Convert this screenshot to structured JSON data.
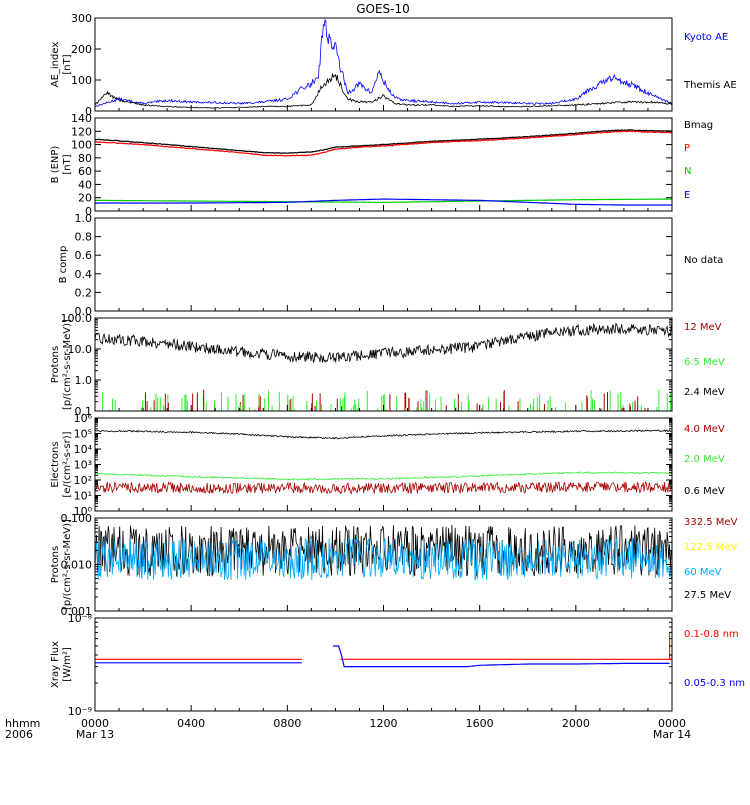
{
  "title": "GOES-10",
  "time_axis": {
    "unit_label": "hhmm",
    "year_label": "2006",
    "ticks": [
      {
        "label": "0000",
        "date": "Mar 13"
      },
      {
        "label": "0400",
        "date": ""
      },
      {
        "label": "0800",
        "date": ""
      },
      {
        "label": "1200",
        "date": ""
      },
      {
        "label": "1600",
        "date": ""
      },
      {
        "label": "2000",
        "date": ""
      },
      {
        "label": "0000",
        "date": "Mar 14"
      }
    ]
  },
  "colors": {
    "black": "#000000",
    "blue": "#0000ff",
    "red": "#ff0000",
    "green": "#00cc00",
    "darkred": "#aa0000",
    "lime": "#33ee33",
    "yellow": "#ffff00",
    "cyan": "#00aaff"
  },
  "chart_data": [
    {
      "type": "line",
      "id": "ae",
      "ylabel": [
        "AE_index",
        "[nT]"
      ],
      "ylim": [
        0,
        310
      ],
      "yticks": [
        "0",
        "100",
        "200",
        "300"
      ],
      "legend": [
        {
          "name": "Kyoto AE",
          "color": "#0000ff"
        },
        {
          "name": "Themis AE",
          "color": "#000000"
        }
      ],
      "series": [
        {
          "name": "Kyoto AE",
          "color": "#0000ff",
          "x": [
            0,
            1,
            2,
            3,
            4,
            5,
            6,
            7,
            8,
            8.5,
            9,
            9.3,
            9.5,
            9.8,
            10,
            10.2,
            10.5,
            11,
            11.5,
            11.8,
            12,
            12.3,
            12.6,
            13,
            14,
            15,
            16,
            17,
            18,
            19,
            20,
            20.5,
            21,
            21.5,
            22,
            22.5,
            23,
            23.5,
            24
          ],
          "y": [
            15,
            40,
            25,
            35,
            30,
            28,
            25,
            30,
            40,
            70,
            90,
            120,
            300,
            230,
            210,
            150,
            60,
            90,
            60,
            130,
            100,
            60,
            40,
            35,
            30,
            25,
            30,
            28,
            25,
            25,
            40,
            70,
            90,
            110,
            100,
            80,
            60,
            40,
            25
          ]
        },
        {
          "name": "Themis AE",
          "color": "#000000",
          "x": [
            0,
            0.5,
            1,
            2,
            3,
            4,
            5,
            6,
            7,
            8,
            9,
            9.5,
            10,
            10.5,
            11,
            11.5,
            12,
            12.5,
            13,
            14,
            15,
            16,
            17,
            18,
            19,
            20,
            21,
            22,
            23,
            24
          ],
          "y": [
            20,
            60,
            35,
            20,
            15,
            12,
            10,
            12,
            15,
            15,
            20,
            90,
            120,
            40,
            30,
            30,
            50,
            25,
            20,
            20,
            15,
            18,
            15,
            15,
            18,
            20,
            25,
            30,
            30,
            25
          ]
        }
      ]
    },
    {
      "type": "line",
      "id": "b-enp",
      "ylabel": [
        "B (ENP)",
        "[nT]"
      ],
      "ylim": [
        0,
        140
      ],
      "yticks": [
        "0",
        "20",
        "40",
        "60",
        "80",
        "100",
        "120",
        "140"
      ],
      "legend": [
        {
          "name": "Bmag",
          "color": "#000000"
        },
        {
          "name": "P",
          "color": "#ff0000"
        },
        {
          "name": "N",
          "color": "#00cc00"
        },
        {
          "name": "E",
          "color": "#0000ff"
        }
      ],
      "series": [
        {
          "name": "Bmag",
          "color": "#000000",
          "x": [
            0,
            2,
            4,
            6,
            7,
            8,
            9,
            9.5,
            10,
            11,
            12,
            14,
            16,
            18,
            20,
            21,
            22,
            23,
            24
          ],
          "y": [
            108,
            103,
            97,
            91,
            88,
            87,
            89,
            92,
            96,
            98,
            100,
            105,
            108,
            112,
            117,
            120,
            122,
            121,
            120
          ]
        },
        {
          "name": "P",
          "color": "#ff0000",
          "x": [
            0,
            2,
            4,
            6,
            7,
            8,
            9,
            9.5,
            10,
            11,
            12,
            14,
            16,
            18,
            20,
            21,
            22,
            23,
            24
          ],
          "y": [
            104,
            100,
            94,
            88,
            84,
            83,
            84,
            88,
            93,
            96,
            98,
            103,
            106,
            110,
            115,
            118,
            120,
            119,
            118
          ]
        },
        {
          "name": "N",
          "color": "#00cc00",
          "x": [
            0,
            4,
            8,
            12,
            16,
            20,
            24
          ],
          "y": [
            16,
            15,
            14,
            13,
            15,
            17,
            18
          ]
        },
        {
          "name": "E",
          "color": "#0000ff",
          "x": [
            0,
            4,
            8,
            10,
            12,
            14,
            16,
            18,
            20,
            22,
            24
          ],
          "y": [
            12,
            12,
            13,
            16,
            18,
            17,
            16,
            13,
            10,
            9,
            9
          ]
        }
      ]
    },
    {
      "type": "line",
      "id": "b-comp",
      "ylabel": [
        "B comp"
      ],
      "ylim": [
        0,
        1
      ],
      "yticks": [
        "0.0",
        "0.2",
        "0.4",
        "0.6",
        "0.8",
        "1.0"
      ],
      "legend": [
        {
          "name": "No data",
          "color": "#000000"
        }
      ],
      "series": []
    },
    {
      "type": "line",
      "id": "protons-low",
      "ylabel": [
        "Protons",
        "[p/(cm²-s-sr-MeV)]"
      ],
      "yscale": "log",
      "ylim": [
        0.1,
        100
      ],
      "yticks": [
        "0.1",
        "1.0",
        "10.0",
        "100.0"
      ],
      "legend": [
        {
          "name": "12 MeV",
          "color": "#aa0000"
        },
        {
          "name": "6.5 MeV",
          "color": "#33ee33"
        },
        {
          "name": "2.4 MeV",
          "color": "#000000"
        }
      ],
      "series": [
        {
          "name": "2.4 MeV",
          "color": "#000000",
          "x": [
            0,
            2,
            4,
            6,
            8,
            10,
            12,
            14,
            16,
            18,
            20,
            22,
            24
          ],
          "y": [
            22,
            18,
            12,
            8,
            6,
            5,
            7,
            9,
            12,
            25,
            40,
            45,
            38
          ]
        }
      ]
    },
    {
      "type": "line",
      "id": "electrons",
      "ylabel": [
        "Electrons",
        "[e/(cm²-s-sr)]"
      ],
      "yscale": "log",
      "ylim": [
        1,
        1000000
      ],
      "yticks": [
        "10⁰",
        "10¹",
        "10²",
        "10³",
        "10⁴",
        "10⁵",
        "10⁶"
      ],
      "legend": [
        {
          "name": "4.0 MeV",
          "color": "#aa0000"
        },
        {
          "name": "2.0 MeV",
          "color": "#33ee33"
        },
        {
          "name": "0.6 MeV",
          "color": "#000000"
        }
      ],
      "series": [
        {
          "name": "0.6 MeV",
          "color": "#000000",
          "x": [
            0,
            4,
            8,
            10,
            12,
            16,
            20,
            24
          ],
          "y": [
            150000,
            120000,
            60000,
            50000,
            70000,
            110000,
            140000,
            150000
          ]
        },
        {
          "name": "2.0 MeV",
          "color": "#33ee33",
          "x": [
            0,
            4,
            8,
            12,
            16,
            20,
            24
          ],
          "y": [
            250,
            160,
            110,
            120,
            180,
            300,
            280
          ]
        },
        {
          "name": "4.0 MeV",
          "color": "#aa0000",
          "x": [
            0,
            4,
            8,
            12,
            16,
            20,
            24
          ],
          "y": [
            35,
            30,
            30,
            30,
            30,
            35,
            35
          ]
        }
      ]
    },
    {
      "type": "line",
      "id": "protons-high",
      "ylabel": [
        "Protons",
        "[p/(cm²-s-sr-MeV)]"
      ],
      "yscale": "log",
      "ylim": [
        0.001,
        0.1
      ],
      "yticks": [
        "0.001",
        "0.010",
        "0.100"
      ],
      "legend": [
        {
          "name": "332.5 MeV",
          "color": "#aa0000"
        },
        {
          "name": "122.5 MeV",
          "color": "#ffff00"
        },
        {
          "name": "60 MeV",
          "color": "#00aaff"
        },
        {
          "name": "27.5 MeV",
          "color": "#000000"
        }
      ],
      "series": [
        {
          "name": "27.5 MeV",
          "color": "#000000",
          "x": [
            0,
            24
          ],
          "y": [
            0.02,
            0.02
          ]
        },
        {
          "name": "60 MeV",
          "color": "#00aaff",
          "x": [
            0,
            24
          ],
          "y": [
            0.013,
            0.013
          ]
        }
      ]
    },
    {
      "type": "line",
      "id": "xray",
      "ylabel": [
        "Xray Flux",
        "[W/m²]"
      ],
      "yscale": "log",
      "ylim": [
        1e-09,
        1e-08
      ],
      "yticks": [
        "10⁻⁹",
        "10⁻⁸"
      ],
      "legend": [
        {
          "name": "0.1-0.8 nm",
          "color": "#ff0000"
        },
        {
          "name": "0.05-0.3 nm",
          "color": "#0000ff"
        }
      ],
      "series": [
        {
          "name": "0.1-0.8 nm",
          "color": "#ff0000",
          "x": [
            0,
            8.6
          ],
          "y": [
            3.6e-09,
            3.6e-09
          ]
        },
        {
          "name": "0.1-0.8 nm",
          "color": "#ff0000",
          "x": [
            10.2,
            24
          ],
          "y": [
            3.6e-09,
            3.6e-09
          ]
        },
        {
          "name": "0.05-0.3 nm",
          "color": "#0000ff",
          "x": [
            0,
            8.6
          ],
          "y": [
            3.3e-09,
            3.3e-09
          ]
        },
        {
          "name": "0.05-0.3 nm",
          "color": "#0000ff",
          "x": [
            9.9,
            10.2,
            10.3,
            15.5,
            16,
            17,
            18,
            20,
            22,
            23.9
          ],
          "y": [
            5e-09,
            5e-09,
            3e-09,
            3e-09,
            3.1e-09,
            3.15e-09,
            3.2e-09,
            3.2e-09,
            3.25e-09,
            3.25e-09
          ]
        }
      ]
    }
  ]
}
